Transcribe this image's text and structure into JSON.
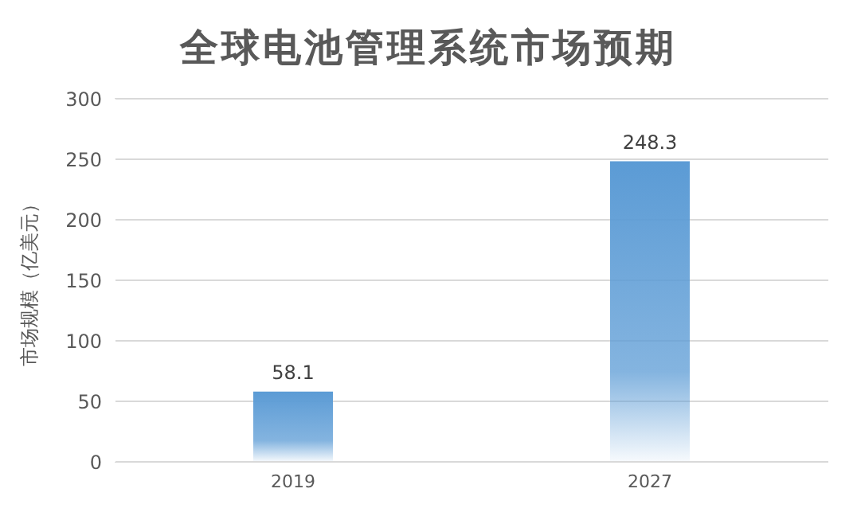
{
  "chart_data": {
    "type": "bar",
    "title": "全球电池管理系统市场预期",
    "ylabel": "市场规模（亿美元）",
    "categories": [
      "2019",
      "2027"
    ],
    "series": [
      {
        "color": "#5b9bd5",
        "values": [
          58.1,
          248.3
        ]
      }
    ],
    "ylim": [
      0,
      300
    ],
    "yticks": [
      0,
      50,
      100,
      150,
      200,
      250,
      300
    ],
    "grid": "y",
    "legend": false,
    "data_labels": true
  }
}
